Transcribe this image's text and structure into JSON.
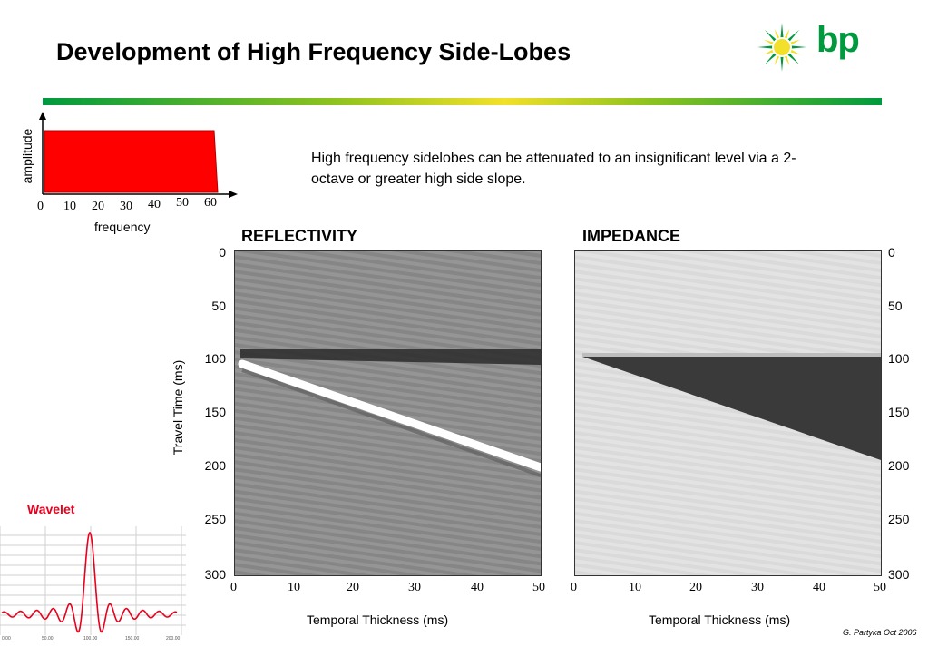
{
  "title": "Development of High Frequency Side-Lobes",
  "logo": {
    "text": "bp",
    "green": "#009a3e",
    "yellow": "#f2e02a"
  },
  "note": "High frequency sidelobes can be attenuated to an insignificant level via a 2-octave or greater high side slope.",
  "spectrum": {
    "ylabel": "amplitude",
    "xlabel": "frequency",
    "ticks": [
      "0",
      "10",
      "20",
      "30",
      "40",
      "50",
      "60"
    ],
    "passband_hz": [
      0,
      60
    ],
    "fill_color": "#ff0000"
  },
  "panels": {
    "reflectivity": {
      "title": "REFLECTIVITY",
      "xlabel": "Temporal Thickness (ms)"
    },
    "impedance": {
      "title": "IMPEDANCE",
      "xlabel": "Temporal Thickness (ms)"
    },
    "ylabel": "Travel Time (ms)",
    "y_ticks": [
      "0",
      "50",
      "100",
      "150",
      "200",
      "250",
      "300"
    ],
    "x_ticks": [
      "0",
      "10",
      "20",
      "30",
      "40",
      "50"
    ]
  },
  "wavelet": {
    "title": "Wavelet",
    "x_ticks": [
      "0.00",
      "50.00",
      "100.00",
      "150.00",
      "200.00"
    ],
    "color": "#e8001c"
  },
  "signature": "G. Partyka Oct 2006"
}
